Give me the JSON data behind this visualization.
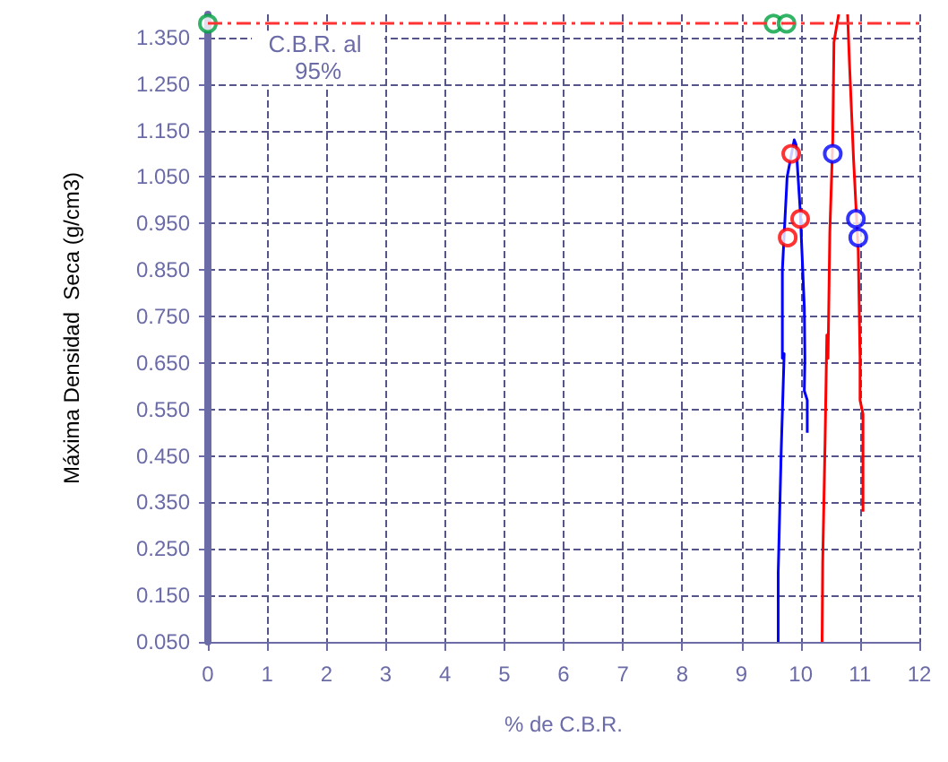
{
  "chart_data": {
    "type": "line",
    "xlabel": "% de C.B.R.",
    "ylabel": "Máxima Densidad  Seca (g/cm3)",
    "xlim": [
      0,
      12
    ],
    "xticks": [
      0,
      1,
      2,
      3,
      4,
      5,
      6,
      7,
      8,
      9,
      10,
      11,
      12
    ],
    "ylim": [
      0.05,
      1.4
    ],
    "yticks": [
      {
        "value": 0.05,
        "label": "0.050"
      },
      {
        "value": 0.15,
        "label": "0.150"
      },
      {
        "value": 0.25,
        "label": "0.250"
      },
      {
        "value": 0.35,
        "label": "0.350"
      },
      {
        "value": 0.45,
        "label": "0.450"
      },
      {
        "value": 0.55,
        "label": "0.550"
      },
      {
        "value": 0.65,
        "label": "0.650"
      },
      {
        "value": 0.75,
        "label": "0.750"
      },
      {
        "value": 0.85,
        "label": "0.850"
      },
      {
        "value": 0.95,
        "label": "0.950"
      },
      {
        "value": 1.05,
        "label": "1.050"
      },
      {
        "value": 1.15,
        "label": "1.150"
      },
      {
        "value": 1.25,
        "label": "1.250"
      },
      {
        "value": 1.35,
        "label": "1.350"
      }
    ],
    "grid": true,
    "line_style": "solid",
    "series": [
      {
        "marker": "none",
        "color": "#0000ff",
        "x": [
          9.62,
          9.62,
          9.67,
          9.72,
          9.69,
          9.69,
          9.77,
          9.89,
          9.92,
          9.99,
          10.06,
          10.07,
          10.06,
          10.11,
          10.11
        ],
        "values": [
          0.05,
          0.2,
          0.46,
          0.67,
          0.66,
          0.85,
          1.05,
          1.13,
          1.12,
          0.98,
          0.77,
          0.66,
          0.59,
          0.57,
          0.5
        ]
      },
      {
        "marker": "none",
        "color": "#ff0000",
        "x": [
          10.36,
          10.37,
          10.41,
          10.44,
          10.46,
          10.49,
          10.54,
          10.56,
          10.64
        ],
        "values": [
          0.05,
          0.22,
          0.48,
          0.71,
          0.66,
          0.93,
          1.13,
          1.34,
          1.4
        ]
      },
      {
        "marker": "none",
        "color": "#ff0000",
        "x": [
          11.05,
          11.05,
          11.0,
          11.0,
          10.97,
          10.89,
          10.82,
          10.79
        ],
        "values": [
          0.33,
          0.54,
          0.57,
          0.66,
          0.89,
          1.09,
          1.3,
          1.4
        ]
      },
      {
        "type": "scatter",
        "marker": "circle",
        "color": "#ff0000",
        "x": [
          9.84,
          9.99,
          9.78
        ],
        "values": [
          1.1,
          0.96,
          0.92
        ]
      },
      {
        "type": "scatter",
        "marker": "circle",
        "color": "#0000ff",
        "x": [
          10.54,
          10.93,
          10.97
        ],
        "values": [
          1.1,
          0.96,
          0.92
        ]
      },
      {
        "type": "scatter",
        "marker": "circle",
        "color": "#00a040",
        "x": [
          0,
          9.54,
          9.76
        ],
        "values": [
          1.38,
          1.38,
          1.38
        ]
      }
    ],
    "ref_lines": [
      {
        "axis": "y",
        "value": 1.38,
        "label": "C.B.R. al 95%",
        "color": "#ff3333",
        "line_style": "dashdot"
      }
    ]
  }
}
